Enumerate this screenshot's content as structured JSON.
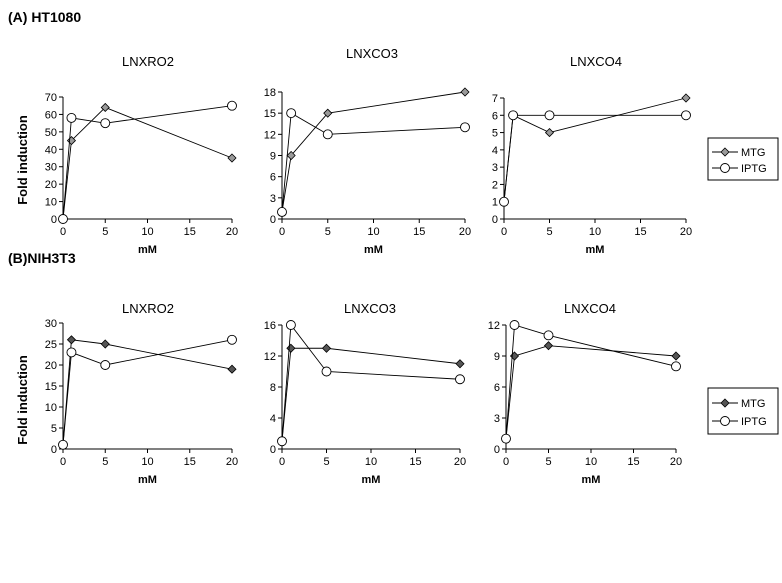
{
  "panels": [
    {
      "label": "(A) HT1080",
      "ylabel": "Fold induction"
    },
    {
      "label": "(B)NIH3T3",
      "ylabel": "Fold induction"
    }
  ],
  "legend": {
    "items": [
      "MTG",
      "IPTG"
    ]
  },
  "colors": {
    "axis": "#000000",
    "mtg_fill": "#9a9a9a",
    "mtg_fill_dark": "#555555",
    "iptg_fill": "#ffffff"
  },
  "chart_data": [
    {
      "type": "line",
      "panel": 0,
      "title": "LNXRO2",
      "xlabel": "mM",
      "x": [
        0,
        1,
        5,
        20
      ],
      "xticks": [
        0,
        5,
        10,
        15,
        20
      ],
      "xlim": [
        0,
        20
      ],
      "ylim": [
        0,
        70
      ],
      "yticks": [
        0,
        10,
        20,
        30,
        40,
        50,
        60,
        70
      ],
      "series": [
        {
          "name": "MTG",
          "values": [
            0,
            45,
            64,
            35
          ]
        },
        {
          "name": "IPTG",
          "values": [
            0,
            58,
            55,
            65
          ]
        }
      ]
    },
    {
      "type": "line",
      "panel": 0,
      "title": "LNXCO3",
      "xlabel": "mM",
      "x": [
        0,
        1,
        5,
        20
      ],
      "xticks": [
        0,
        5,
        10,
        15,
        20
      ],
      "xlim": [
        0,
        20
      ],
      "ylim": [
        0,
        18
      ],
      "yticks": [
        0,
        3,
        6,
        9,
        12,
        15,
        18
      ],
      "series": [
        {
          "name": "MTG",
          "values": [
            1,
            9,
            15,
            18
          ]
        },
        {
          "name": "IPTG",
          "values": [
            1,
            15,
            12,
            13
          ]
        }
      ]
    },
    {
      "type": "line",
      "panel": 0,
      "title": "LNXCO4",
      "xlabel": "mM",
      "x": [
        0,
        1,
        5,
        20
      ],
      "xticks": [
        0,
        5,
        10,
        15,
        20
      ],
      "xlim": [
        0,
        20
      ],
      "ylim": [
        0,
        7
      ],
      "yticks": [
        0,
        1,
        2,
        3,
        4,
        5,
        6,
        7
      ],
      "series": [
        {
          "name": "MTG",
          "values": [
            1,
            6,
            5,
            7
          ]
        },
        {
          "name": "IPTG",
          "values": [
            1,
            6,
            6,
            6
          ]
        }
      ]
    },
    {
      "type": "line",
      "panel": 1,
      "title": "LNXRO2",
      "xlabel": "mM",
      "x": [
        0,
        1,
        5,
        20
      ],
      "xticks": [
        0,
        5,
        10,
        15,
        20
      ],
      "xlim": [
        0,
        20
      ],
      "ylim": [
        0,
        30
      ],
      "yticks": [
        0,
        5,
        10,
        15,
        20,
        25,
        30
      ],
      "series": [
        {
          "name": "MTG",
          "values": [
            1,
            26,
            25,
            19
          ]
        },
        {
          "name": "IPTG",
          "values": [
            1,
            23,
            20,
            26
          ]
        }
      ]
    },
    {
      "type": "line",
      "panel": 1,
      "title": "LNXCO3",
      "xlabel": "mM",
      "x": [
        0,
        1,
        5,
        20
      ],
      "xticks": [
        0,
        5,
        10,
        15,
        20
      ],
      "xlim": [
        0,
        20
      ],
      "ylim": [
        0,
        16
      ],
      "yticks": [
        0,
        4,
        8,
        12,
        16
      ],
      "series": [
        {
          "name": "MTG",
          "values": [
            1,
            13,
            13,
            11
          ]
        },
        {
          "name": "IPTG",
          "values": [
            1,
            16,
            10,
            9
          ]
        }
      ]
    },
    {
      "type": "line",
      "panel": 1,
      "title": "LNXCO4",
      "xlabel": "mM",
      "x": [
        0,
        1,
        5,
        20
      ],
      "xticks": [
        0,
        5,
        10,
        15,
        20
      ],
      "xlim": [
        0,
        20
      ],
      "ylim": [
        0,
        12
      ],
      "yticks": [
        0,
        3,
        6,
        9,
        12
      ],
      "series": [
        {
          "name": "MTG",
          "values": [
            1,
            9,
            10,
            9
          ]
        },
        {
          "name": "IPTG",
          "values": [
            1,
            12,
            11,
            8
          ]
        }
      ]
    }
  ]
}
